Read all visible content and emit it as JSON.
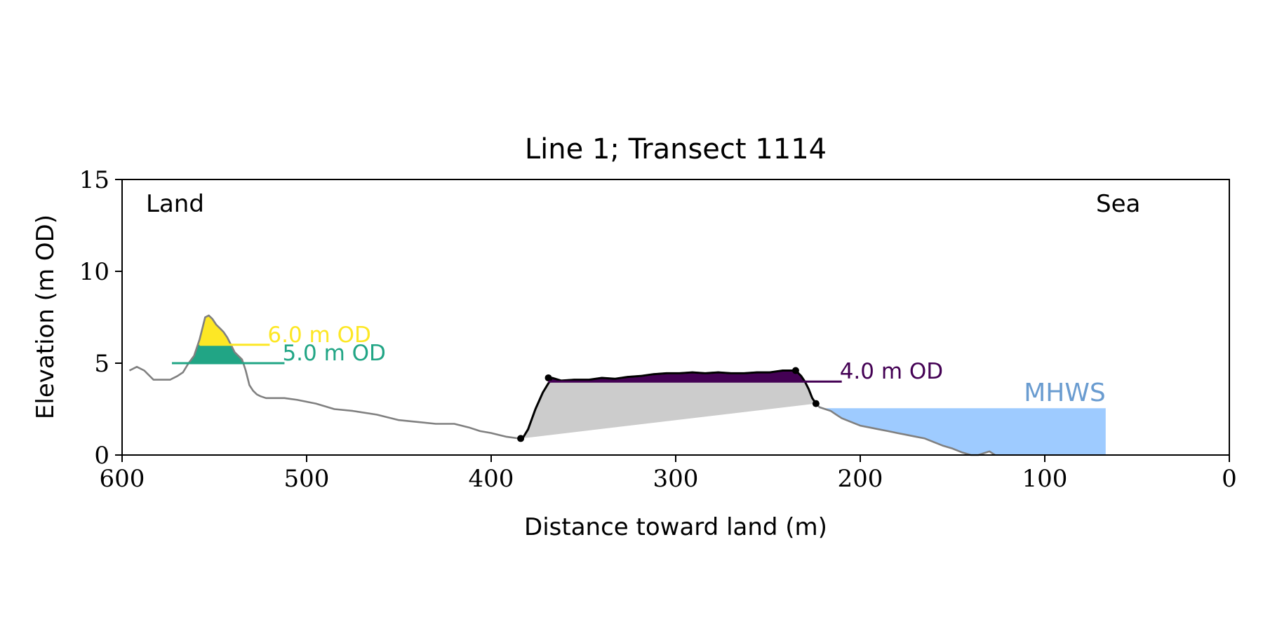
{
  "chart_data": {
    "type": "area",
    "title": "Line 1; Transect 1114",
    "xlabel": "Distance toward land (m)",
    "ylabel": "Elevation (m OD)",
    "xlim": [
      600,
      0
    ],
    "ylim": [
      0,
      15
    ],
    "x_ticks": [
      600,
      500,
      400,
      300,
      200,
      100,
      0
    ],
    "y_ticks": [
      0,
      5,
      10,
      15
    ],
    "grid": false,
    "corner_labels": {
      "left": "Land",
      "right": "Sea"
    },
    "colors": {
      "profile": "#808080",
      "barrier": "#000000",
      "barrier_fill": "#cccccc",
      "dune_low": "#21a585",
      "dune_high": "#fde725",
      "barrier_top": "#440154",
      "mhws_fill": "#9ecbff",
      "mhws_text": "#6a9cd0"
    },
    "profile": {
      "x": [
        596,
        592,
        588,
        583,
        578,
        574,
        570,
        567,
        564,
        561,
        558,
        555,
        553,
        551,
        549,
        547,
        545,
        543,
        541,
        539,
        537,
        535,
        533,
        531,
        529,
        527,
        525,
        522,
        518,
        512,
        505,
        495,
        485,
        475,
        462,
        450,
        440,
        430,
        420,
        412,
        406,
        400,
        396,
        392,
        385,
        383,
        380,
        376,
        372,
        369,
        367,
        362,
        355,
        347,
        340,
        333,
        326,
        319,
        312,
        305,
        298,
        291,
        284,
        277,
        270,
        263,
        256,
        249,
        242,
        236,
        234,
        232,
        230,
        228,
        226,
        224,
        222,
        219,
        216,
        213,
        210,
        205,
        200,
        195,
        190,
        185,
        180,
        175,
        170,
        165,
        160,
        155,
        150,
        145,
        140,
        136,
        133,
        130,
        127
      ],
      "y": [
        4.6,
        4.8,
        4.6,
        4.1,
        4.1,
        4.1,
        4.3,
        4.5,
        5.0,
        5.4,
        6.3,
        7.5,
        7.6,
        7.4,
        7.1,
        6.9,
        6.7,
        6.4,
        6.0,
        5.6,
        5.4,
        5.2,
        4.6,
        3.8,
        3.5,
        3.3,
        3.2,
        3.1,
        3.1,
        3.1,
        3.0,
        2.8,
        2.5,
        2.4,
        2.2,
        1.9,
        1.8,
        1.7,
        1.7,
        1.5,
        1.3,
        1.2,
        1.1,
        1.0,
        0.9,
        0.9,
        1.4,
        2.5,
        3.4,
        3.9,
        4.2,
        4.05,
        4.1,
        4.1,
        4.2,
        4.15,
        4.25,
        4.3,
        4.4,
        4.45,
        4.45,
        4.5,
        4.45,
        4.5,
        4.45,
        4.45,
        4.5,
        4.5,
        4.6,
        4.6,
        4.5,
        4.3,
        4.0,
        3.6,
        3.1,
        2.8,
        2.6,
        2.5,
        2.4,
        2.2,
        2.0,
        1.8,
        1.6,
        1.5,
        1.4,
        1.3,
        1.2,
        1.1,
        1.0,
        0.9,
        0.7,
        0.5,
        0.35,
        0.15,
        0.0,
        0.0,
        0.1,
        0.2,
        0.0
      ]
    },
    "barrier": {
      "start": [
        384,
        0.9
      ],
      "crest_left": [
        369,
        4.2
      ],
      "crest_right": [
        235,
        4.6
      ],
      "end": [
        224,
        2.8
      ]
    },
    "dune_levels": [
      {
        "label": "6.0 m OD",
        "y": 6.0,
        "x_from": 558,
        "x_to": 520
      },
      {
        "label": "5.0 m OD",
        "y": 5.0,
        "x_from": 573,
        "x_to": 512
      }
    ],
    "barrier_level": {
      "label": "4.0 m OD",
      "y": 4.0,
      "x_from": 369,
      "x_to": 210
    },
    "mhws": {
      "label": "MHWS",
      "y": 2.55,
      "x_from": 220,
      "x_to": 67
    }
  }
}
